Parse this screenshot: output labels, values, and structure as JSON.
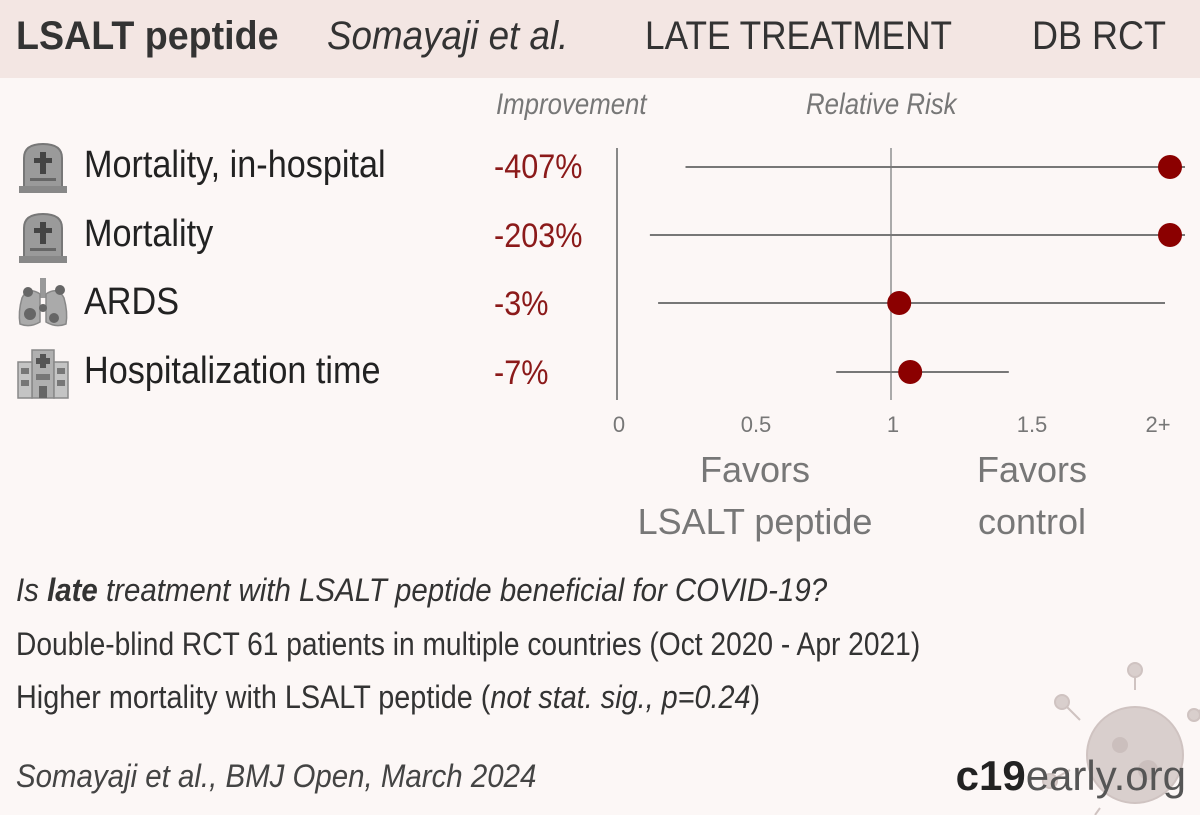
{
  "header": {
    "treatment": "LSALT peptide",
    "author": "Somayaji et al.",
    "stage": "LATE TREATMENT",
    "design": "DB RCT"
  },
  "columns": {
    "improvement": "Improvement",
    "relative_risk": "Relative Risk"
  },
  "chart_data": {
    "type": "forest",
    "xlim": [
      0,
      2
    ],
    "ticks": [
      "0",
      "0.5",
      "1",
      "1.5",
      "2+"
    ],
    "reference_line": 1,
    "outcomes": [
      {
        "label": "Mortality, in-hospital",
        "icon": "tombstone-icon",
        "improvement": "-407%",
        "rr": 5.07,
        "ci_low": 0.25,
        "ci_high": 100
      },
      {
        "label": "Mortality",
        "icon": "tombstone-icon",
        "improvement": "-203%",
        "rr": 3.03,
        "ci_low": 0.12,
        "ci_high": 100
      },
      {
        "label": "ARDS",
        "icon": "lungs-virus-icon",
        "improvement": "-3%",
        "rr": 1.03,
        "ci_low": 0.15,
        "ci_high": 2.0
      },
      {
        "label": "Hospitalization time",
        "icon": "hospital-icon",
        "improvement": "-7%",
        "rr": 1.07,
        "ci_low": 0.8,
        "ci_high": 1.43
      }
    ],
    "favors_left": "Favors\nLSALT peptide",
    "favors_right": "Favors\ncontrol",
    "colors": {
      "point": "#8b0000",
      "line": "#777777",
      "improvement": "#8b1a1a"
    }
  },
  "question": {
    "prefix": "Is ",
    "emphasis": "late",
    "suffix": " treatment with LSALT peptide beneficial for COVID-19?"
  },
  "study": "Double-blind RCT 61 patients in multiple countries (Oct 2020 - Apr 2021)",
  "result": {
    "main": "Higher mortality with LSALT peptide (",
    "note": "not stat. sig., p=0.24",
    "close": ")"
  },
  "citation": "Somayaji et al., BMJ Open, March 2024",
  "brand": {
    "bold": "c19",
    "light": "early.org"
  }
}
